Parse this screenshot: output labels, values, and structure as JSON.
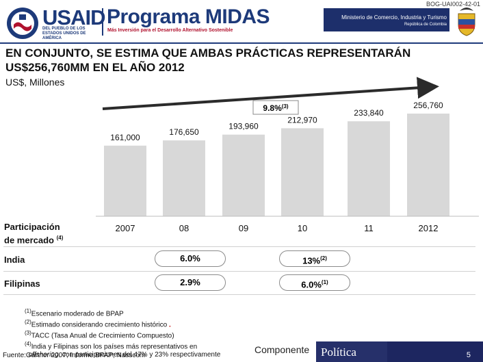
{
  "header": {
    "doc_code": "BOG-UAI002-42-01",
    "logo_usaid": "USAID",
    "logo_usaid_sub": "DEL PUEBLO DE LOS ESTADOS UNIDOS DE AMÉRICA",
    "logo_midas": "Programa MIDAS",
    "logo_midas_sub": "Más Inversión para el Desarrollo Alternativo Sostenible",
    "ministry": "Ministerio de Comercio, Industria y Turismo",
    "republic": "República de Colombia",
    "colors": {
      "navy": "#1d3a7a",
      "red": "#b0122e",
      "bar": "#d8d8d8"
    }
  },
  "slide": {
    "title_line1": "EN CONJUNTO, SE ESTIMA QUE AMBAS PRÁCTICAS REPRESENTARÁN",
    "title_line2": "US$256,760MM EN EL AÑO 2012",
    "subtitle": "US$, Millones"
  },
  "chart_data": {
    "type": "bar",
    "title": "",
    "unit": "US$, Millones",
    "categories": [
      "2007",
      "08",
      "09",
      "10",
      "11",
      "2012"
    ],
    "values": [
      161000,
      176650,
      193960,
      212970,
      233840,
      256760
    ],
    "value_labels": [
      "161,000",
      "176,650",
      "193,960",
      "212,970",
      "233,840",
      "256,760"
    ],
    "cagr_label": "9.8%",
    "cagr_note": "(3)",
    "ylim": [
      0,
      256760
    ],
    "grid": false,
    "legend": "none"
  },
  "market": {
    "label_line1": "Participación",
    "label_line2": "de mercado",
    "label_note": "(4)",
    "rows": [
      {
        "name": "India",
        "value_08": "6.0%",
        "value_10": "13%",
        "note_10": "(2)"
      },
      {
        "name": "Filipinas",
        "value_08": "2.9%",
        "value_10": "6.0%",
        "note_10": "(1)"
      }
    ]
  },
  "notes": [
    {
      "num": "(1)",
      "text": "Escenario moderado de BPAP"
    },
    {
      "num": "(2)",
      "text": "Estimado considerando crecimiento histórico"
    },
    {
      "num": "(3)",
      "text": "TACC (Tasa Anual de Crecimiento Compuesto)"
    },
    {
      "num": "(4)",
      "text": "India y Filipinas son los países más representativos en"
    },
    {
      "num": "",
      "text_italic": "offshoring",
      "text": ", con participaciones del 47% y 23% respectivamente"
    }
  ],
  "source": "Fuente:Gartner 2007; Informe BPAP; Nasscom",
  "footer": {
    "componente": "Componente",
    "politica": "Política",
    "page": "5"
  }
}
